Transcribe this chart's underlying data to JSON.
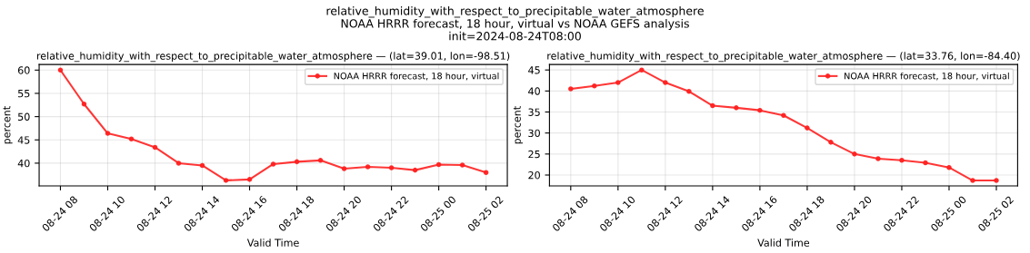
{
  "chart_data": [
    {
      "type": "line",
      "title": "relative_humidity_with_respect_to_precipitable_water_atmosphere — (lat=39.01, lon=-98.51)",
      "annotations": [
        "relative_humidity_with_respect_to_precipitable_water_atmosphere",
        "NOAA HRRR forecast, 18 hour, virtual vs NOAA GEFS analysis",
        "init=2024-08-24T08:00"
      ],
      "xlabel": "Valid Time",
      "ylabel": "percent",
      "x": [
        "2024-08-24T08:00",
        "2024-08-24T09:00",
        "2024-08-24T10:00",
        "2024-08-24T11:00",
        "2024-08-24T12:00",
        "2024-08-24T13:00",
        "2024-08-24T14:00",
        "2024-08-24T15:00",
        "2024-08-24T16:00",
        "2024-08-24T17:00",
        "2024-08-24T18:00",
        "2024-08-24T19:00",
        "2024-08-24T20:00",
        "2024-08-24T21:00",
        "2024-08-24T22:00",
        "2024-08-24T23:00",
        "2024-08-25T00:00",
        "2024-08-25T01:00",
        "2024-08-25T02:00"
      ],
      "series": [
        {
          "name": "NOAA HRRR forecast, 18 hour, virtual",
          "color": "#ff2020",
          "values": [
            60.0,
            52.7,
            46.4,
            45.2,
            43.4,
            40.0,
            39.5,
            36.3,
            36.5,
            39.8,
            40.3,
            40.6,
            38.8,
            39.2,
            39.0,
            38.5,
            39.7,
            39.6,
            38.0
          ]
        }
      ],
      "xlim": [
        "2024-08-24T07:06",
        "2024-08-25T02:54"
      ],
      "ylim": [
        35.1,
        61.2
      ],
      "yticks": [
        40,
        45,
        50,
        55,
        60
      ],
      "xticks": [
        {
          "value": "2024-08-24T08:00",
          "label": "08-24 08"
        },
        {
          "value": "2024-08-24T10:00",
          "label": "08-24 10"
        },
        {
          "value": "2024-08-24T12:00",
          "label": "08-24 12"
        },
        {
          "value": "2024-08-24T14:00",
          "label": "08-24 14"
        },
        {
          "value": "2024-08-24T16:00",
          "label": "08-24 16"
        },
        {
          "value": "2024-08-24T18:00",
          "label": "08-24 18"
        },
        {
          "value": "2024-08-24T20:00",
          "label": "08-24 20"
        },
        {
          "value": "2024-08-24T22:00",
          "label": "08-24 22"
        },
        {
          "value": "2024-08-25T00:00",
          "label": "08-25 00"
        },
        {
          "value": "2024-08-25T02:00",
          "label": "08-25 02"
        }
      ],
      "grid": true,
      "legend": "top right",
      "marker": "circle",
      "line_style": "solid"
    },
    {
      "type": "line",
      "title": "relative_humidity_with_respect_to_precipitable_water_atmosphere — (lat=33.76, lon=-84.40)",
      "xlabel": "Valid Time",
      "ylabel": "percent",
      "x": [
        "2024-08-24T08:00",
        "2024-08-24T09:00",
        "2024-08-24T10:00",
        "2024-08-24T11:00",
        "2024-08-24T12:00",
        "2024-08-24T13:00",
        "2024-08-24T14:00",
        "2024-08-24T15:00",
        "2024-08-24T16:00",
        "2024-08-24T17:00",
        "2024-08-24T18:00",
        "2024-08-24T19:00",
        "2024-08-24T20:00",
        "2024-08-24T21:00",
        "2024-08-24T22:00",
        "2024-08-24T23:00",
        "2024-08-25T00:00",
        "2024-08-25T01:00",
        "2024-08-25T02:00"
      ],
      "series": [
        {
          "name": "NOAA HRRR forecast, 18 hour, virtual",
          "color": "#ff2020",
          "values": [
            40.5,
            41.2,
            42.0,
            45.0,
            42.0,
            39.9,
            36.5,
            36.0,
            35.4,
            34.2,
            31.2,
            27.8,
            25.0,
            23.9,
            23.5,
            22.9,
            21.8,
            18.7,
            18.7
          ]
        }
      ],
      "xlim": [
        "2024-08-24T07:06",
        "2024-08-25T02:54"
      ],
      "ylim": [
        17.4,
        46.3
      ],
      "yticks": [
        20,
        25,
        30,
        35,
        40,
        45
      ],
      "xticks": [
        {
          "value": "2024-08-24T08:00",
          "label": "08-24 08"
        },
        {
          "value": "2024-08-24T10:00",
          "label": "08-24 10"
        },
        {
          "value": "2024-08-24T12:00",
          "label": "08-24 12"
        },
        {
          "value": "2024-08-24T14:00",
          "label": "08-24 14"
        },
        {
          "value": "2024-08-24T16:00",
          "label": "08-24 16"
        },
        {
          "value": "2024-08-24T18:00",
          "label": "08-24 18"
        },
        {
          "value": "2024-08-24T20:00",
          "label": "08-24 20"
        },
        {
          "value": "2024-08-24T22:00",
          "label": "08-24 22"
        },
        {
          "value": "2024-08-25T00:00",
          "label": "08-25 00"
        },
        {
          "value": "2024-08-25T02:00",
          "label": "08-25 02"
        }
      ],
      "grid": true,
      "legend": "top right",
      "marker": "circle",
      "line_style": "solid"
    }
  ]
}
